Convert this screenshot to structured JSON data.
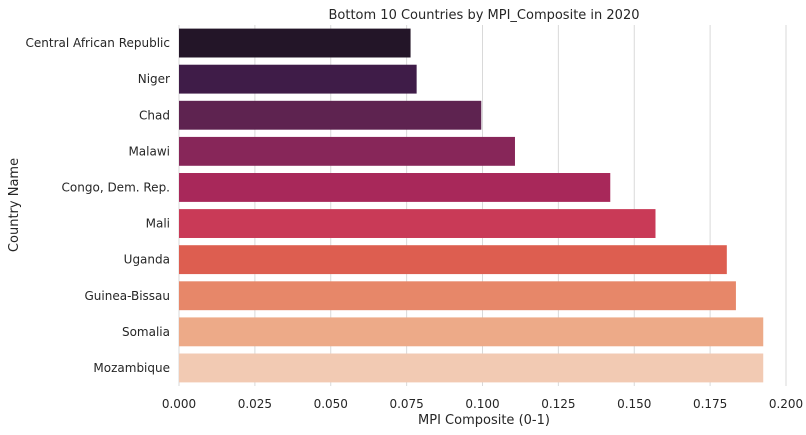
{
  "chart_data": {
    "type": "bar",
    "orientation": "horizontal",
    "title": "Bottom 10 Countries by MPI_Composite in 2020",
    "xlabel": "MPI Composite (0-1)",
    "ylabel": "Country Name",
    "xlim": [
      0,
      0.2
    ],
    "xticks": [
      0.0,
      0.025,
      0.05,
      0.075,
      0.1,
      0.125,
      0.15,
      0.175,
      0.2
    ],
    "xtick_labels": [
      "0.000",
      "0.025",
      "0.050",
      "0.075",
      "0.100",
      "0.125",
      "0.150",
      "0.175",
      "0.200"
    ],
    "grid": "x",
    "categories": [
      "Central African Republic",
      "Niger",
      "Chad",
      "Malawi",
      "Congo, Dem. Rep.",
      "Mali",
      "Uganda",
      "Guinea-Bissau",
      "Somalia",
      "Mozambique"
    ],
    "values": [
      0.0763,
      0.0783,
      0.0996,
      0.1107,
      0.1421,
      0.157,
      0.1805,
      0.1835,
      0.1925,
      0.1925
    ],
    "colors": [
      "#231528",
      "#3f1c48",
      "#5e2350",
      "#872659",
      "#a8285a",
      "#c93a57",
      "#dd5e50",
      "#e78769",
      "#edaa88",
      "#f2cab3"
    ]
  }
}
